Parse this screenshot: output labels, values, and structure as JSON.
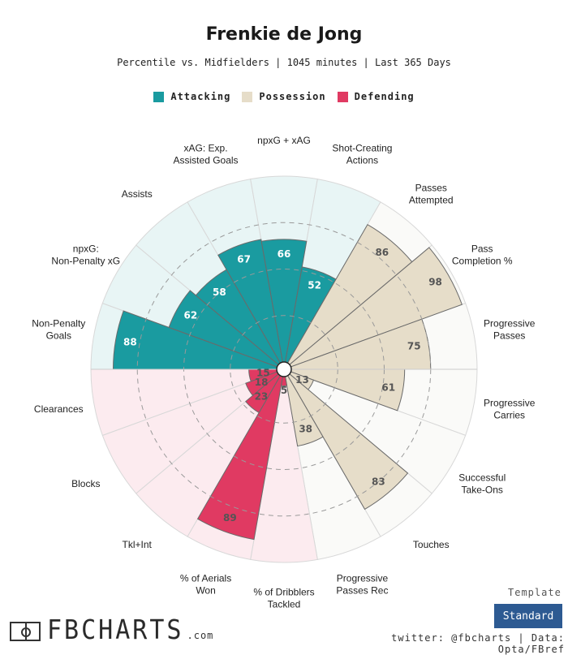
{
  "header": {
    "title": "Frenkie de Jong",
    "subtitle": "Percentile vs. Midfielders | 1045 minutes | Last 365 Days"
  },
  "legend": [
    {
      "label": "Attacking",
      "color": "#1a9ba0"
    },
    {
      "label": "Possession",
      "color": "#e6ddc9"
    },
    {
      "label": "Defending",
      "color": "#e03a62"
    }
  ],
  "chart_data": {
    "type": "radar",
    "range": [
      0,
      100
    ],
    "segments": [
      {
        "label": "Non-Penalty Goals",
        "value": 88,
        "group": "Attacking"
      },
      {
        "label": "npxG: Non-Penalty xG",
        "value": 62,
        "group": "Attacking"
      },
      {
        "label": "Assists",
        "value": 58,
        "group": "Attacking"
      },
      {
        "label": "xAG: Exp. Assisted Goals",
        "value": 67,
        "group": "Attacking"
      },
      {
        "label": "npxG + xAG",
        "value": 66,
        "group": "Attacking"
      },
      {
        "label": "Shot-Creating Actions",
        "value": 52,
        "group": "Attacking"
      },
      {
        "label": "Passes Attempted",
        "value": 86,
        "group": "Possession"
      },
      {
        "label": "Pass Completion %",
        "value": 98,
        "group": "Possession"
      },
      {
        "label": "Progressive Passes",
        "value": 75,
        "group": "Possession"
      },
      {
        "label": "Progressive Carries",
        "value": 61,
        "group": "Possession"
      },
      {
        "label": "Successful Take-Ons",
        "value": 13,
        "group": "Possession"
      },
      {
        "label": "Touches",
        "value": 83,
        "group": "Possession"
      },
      {
        "label": "Progressive Passes Rec",
        "value": 38,
        "group": "Possession"
      },
      {
        "label": "% of Dribblers Tackled",
        "value": 5,
        "group": "Defending"
      },
      {
        "label": "% of Aerials Won",
        "value": 89,
        "group": "Defending"
      },
      {
        "label": "Tkl+Int",
        "value": 23,
        "group": "Defending"
      },
      {
        "label": "Blocks",
        "value": 18,
        "group": "Defending"
      },
      {
        "label": "Clearances",
        "value": 15,
        "group": "Defending"
      }
    ]
  },
  "footer": {
    "template_label": "Template",
    "template_value": "Standard",
    "credits": "twitter: @fbcharts | Data: Opta/FBref",
    "logo_text": "FBCHARTS",
    "logo_suffix": ".com"
  }
}
